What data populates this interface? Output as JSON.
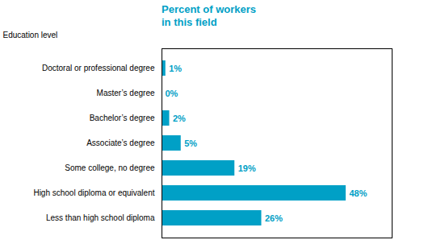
{
  "chart_data": {
    "type": "bar",
    "orientation": "horizontal",
    "title": "Percent of workers\nin this field",
    "ylabel": "Education level",
    "categories": [
      "Doctoral or professional degree",
      "Master’s degree",
      "Bachelor’s degree",
      "Associate’s degree",
      "Some college, no degree",
      "High school diploma or equivalent",
      "Less than high school diploma"
    ],
    "values": [
      1,
      0,
      2,
      5,
      19,
      48,
      26
    ],
    "value_labels": [
      "1%",
      "0%",
      "2%",
      "5%",
      "19%",
      "48%",
      "26%"
    ],
    "data_labels": true,
    "color": "#00a0c6",
    "xlim": [
      0,
      60
    ],
    "xticks": [],
    "tick_labels": "y",
    "grid": false
  }
}
